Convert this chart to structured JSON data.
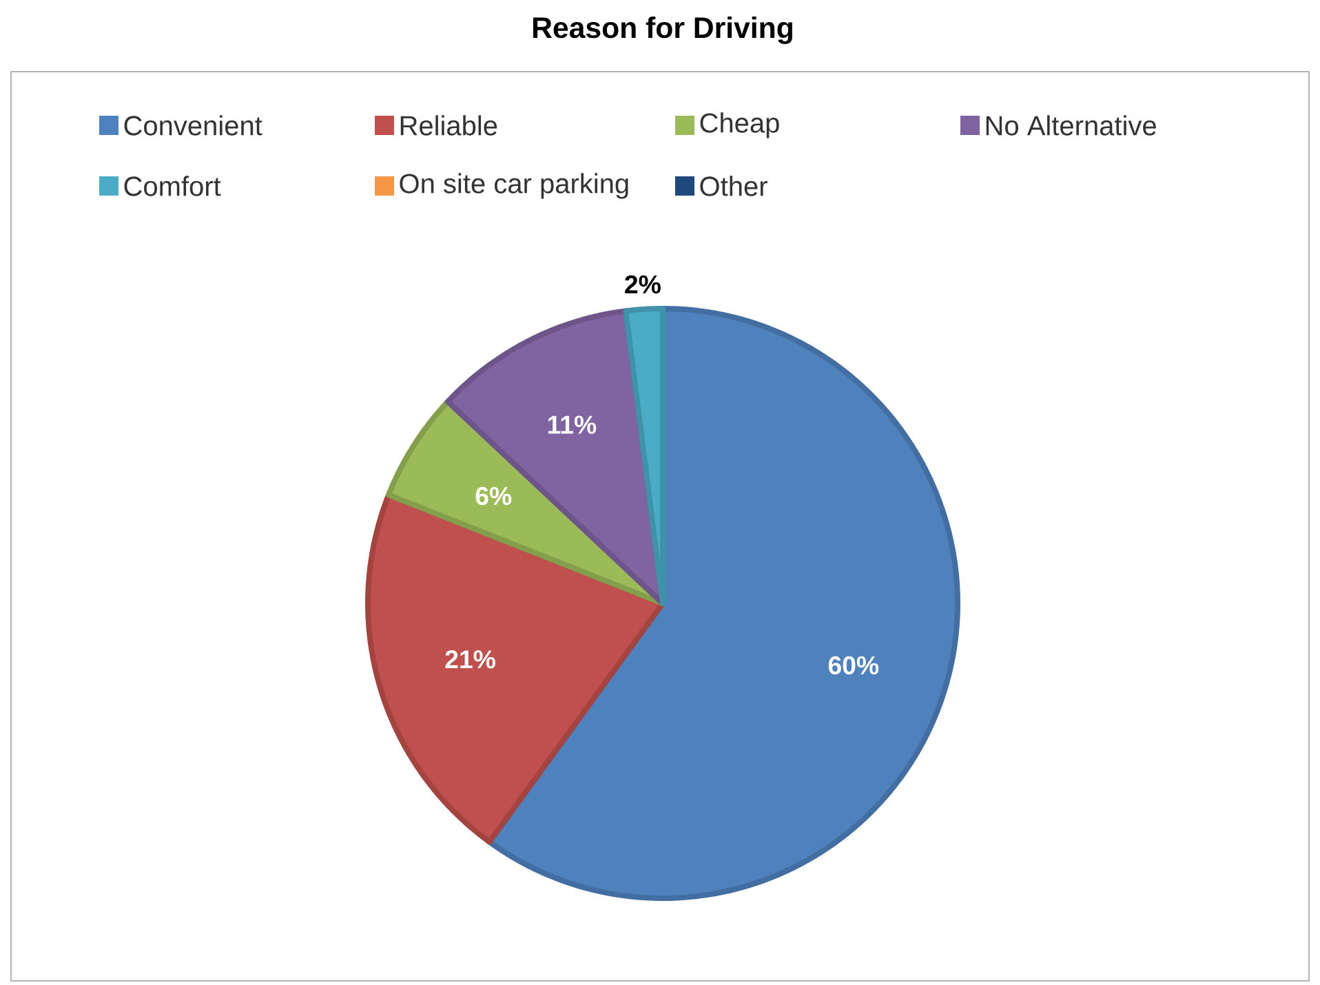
{
  "chart_data": {
    "type": "pie",
    "title": "Reason for Driving",
    "categories": [
      "Convenient",
      "Reliable",
      "Cheap",
      "No Alternative",
      "Comfort",
      "On site car parking",
      "Other"
    ],
    "values": [
      60,
      21,
      6,
      11,
      2,
      0,
      0
    ],
    "colors": [
      "#4f81bd",
      "#c0504d",
      "#9bbb59",
      "#8064a2",
      "#4bacc6",
      "#f79646",
      "#1f497d"
    ],
    "value_labels": [
      "60%",
      "21%",
      "6%",
      "11%",
      "2%",
      null,
      null
    ],
    "legend": "top"
  }
}
